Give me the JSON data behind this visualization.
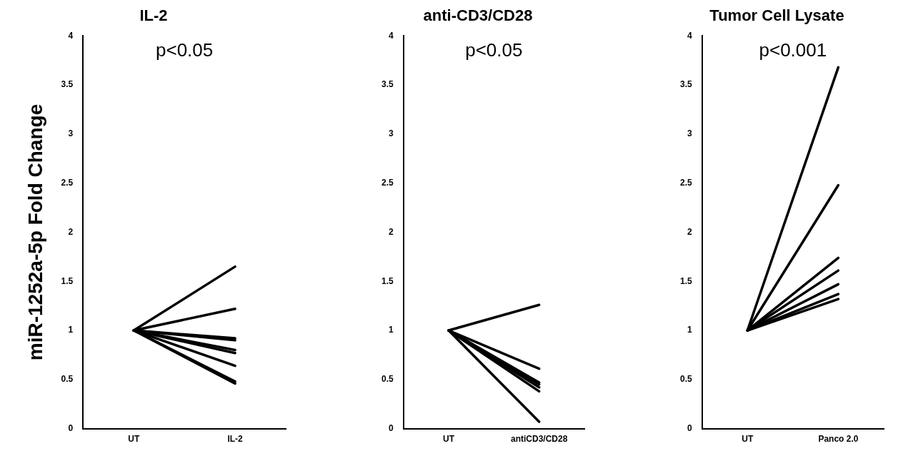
{
  "chart_data": [
    {
      "type": "line",
      "title": "IL-2",
      "ylabel": "miR-1252a-5p Fold Change",
      "categories": [
        "UT",
        "IL-2"
      ],
      "ylim": [
        0,
        4
      ],
      "yticks": [
        0,
        0.5,
        1,
        1.5,
        2,
        2.5,
        3,
        3.5,
        4
      ],
      "grid": false,
      "legend": false,
      "marker": "none",
      "line_style": "solid",
      "annotations": [
        "p<0.05"
      ],
      "series": [
        {
          "color": "#000000",
          "values": [
            1,
            1.65
          ]
        },
        {
          "color": "#000000",
          "values": [
            1,
            1.22
          ]
        },
        {
          "color": "#000000",
          "values": [
            1,
            0.92
          ]
        },
        {
          "color": "#000000",
          "values": [
            1,
            0.9
          ]
        },
        {
          "color": "#000000",
          "values": [
            1,
            0.8
          ]
        },
        {
          "color": "#000000",
          "values": [
            1,
            0.77
          ]
        },
        {
          "color": "#000000",
          "values": [
            1,
            0.64
          ]
        },
        {
          "color": "#000000",
          "values": [
            1,
            0.48
          ]
        },
        {
          "color": "#000000",
          "values": [
            1,
            0.46
          ]
        }
      ]
    },
    {
      "type": "line",
      "title": "anti-CD3/CD28",
      "categories": [
        "UT",
        "antiCD3/CD28"
      ],
      "ylim": [
        0,
        4
      ],
      "yticks": [
        0,
        0.5,
        1,
        1.5,
        2,
        2.5,
        3,
        3.5,
        4
      ],
      "grid": false,
      "legend": false,
      "marker": "none",
      "line_style": "solid",
      "annotations": [
        "p<0.05"
      ],
      "series": [
        {
          "color": "#000000",
          "values": [
            1,
            1.26
          ]
        },
        {
          "color": "#000000",
          "values": [
            1,
            0.61
          ]
        },
        {
          "color": "#000000",
          "values": [
            1,
            0.47
          ]
        },
        {
          "color": "#000000",
          "values": [
            1,
            0.45
          ]
        },
        {
          "color": "#000000",
          "values": [
            1,
            0.42
          ]
        },
        {
          "color": "#000000",
          "values": [
            1,
            0.38
          ]
        },
        {
          "color": "#000000",
          "values": [
            1,
            0.07
          ]
        }
      ]
    },
    {
      "type": "line",
      "title": "Tumor Cell Lysate",
      "categories": [
        "UT",
        "Panco 2.0"
      ],
      "ylim": [
        0,
        4
      ],
      "yticks": [
        0,
        0.5,
        1,
        1.5,
        2,
        2.5,
        3,
        3.5,
        4
      ],
      "grid": false,
      "legend": false,
      "marker": "none",
      "line_style": "solid",
      "annotations": [
        "p<0.001"
      ],
      "series": [
        {
          "color": "#000000",
          "values": [
            1,
            3.68
          ]
        },
        {
          "color": "#000000",
          "values": [
            1,
            2.48
          ]
        },
        {
          "color": "#000000",
          "values": [
            1,
            1.74
          ]
        },
        {
          "color": "#000000",
          "values": [
            1,
            1.61
          ]
        },
        {
          "color": "#000000",
          "values": [
            1,
            1.47
          ]
        },
        {
          "color": "#000000",
          "values": [
            1,
            1.37
          ]
        },
        {
          "color": "#000000",
          "values": [
            1,
            1.32
          ]
        }
      ]
    }
  ]
}
